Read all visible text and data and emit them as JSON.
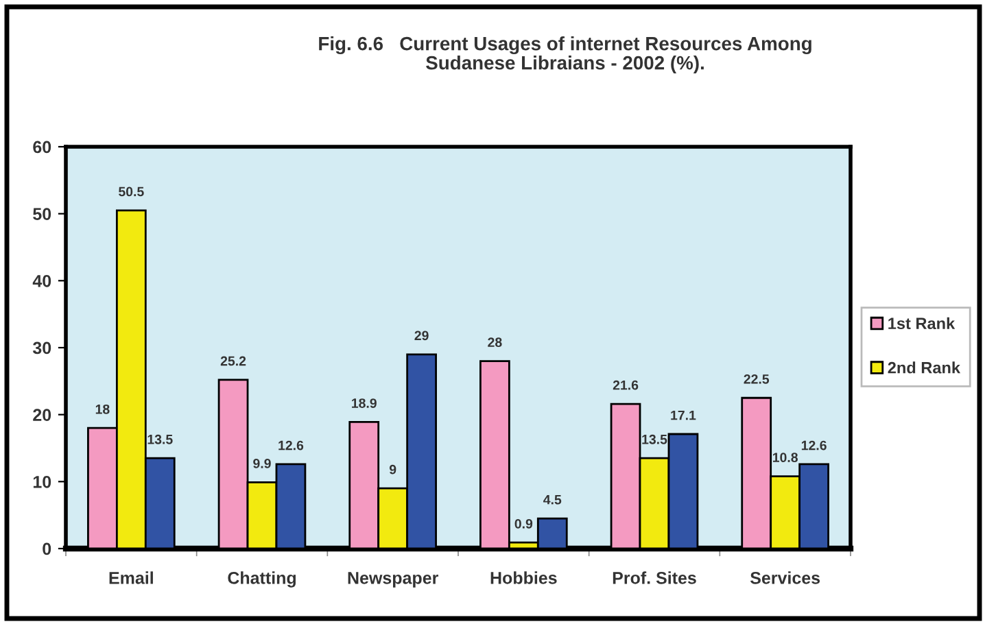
{
  "chart_data": {
    "type": "bar",
    "title": "Fig. 6.6   Current Usages of internet Resources Among\nSudanese Libraians - 2002 (%).",
    "categories": [
      "Email",
      "Chatting",
      "Newspaper",
      "Hobbies",
      "Prof. Sites",
      "Services"
    ],
    "series": [
      {
        "name": "1st Rank",
        "color": "#f49ac1",
        "values": [
          18,
          25.2,
          18.9,
          28,
          21.6,
          22.5
        ]
      },
      {
        "name": "2nd Rank",
        "color": "#f2ea0f",
        "values": [
          50.5,
          9.9,
          9,
          0.9,
          13.5,
          10.8
        ]
      },
      {
        "color": "#3153a4",
        "values": [
          13.5,
          12.6,
          29,
          4.5,
          17.1,
          12.6
        ]
      }
    ],
    "ylim": [
      0,
      60
    ],
    "yticks": [
      0,
      10,
      20,
      30,
      40,
      50,
      60
    ],
    "data_labels": true,
    "grid": false,
    "legend": "right"
  }
}
